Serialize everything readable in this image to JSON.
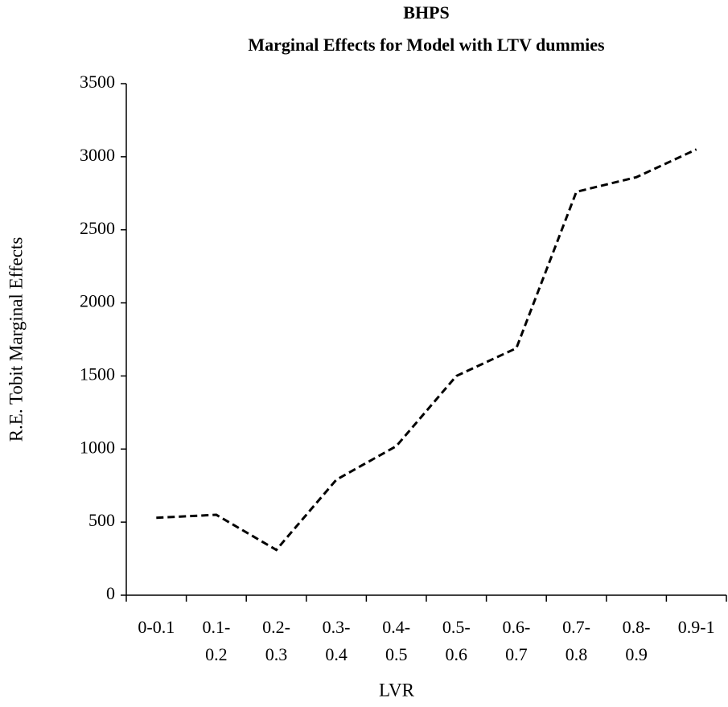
{
  "chart_data": {
    "type": "line",
    "title": "BHPS",
    "subtitle": "Marginal Effects for Model with LTV dummies",
    "x_label": "LVR",
    "y_label": "R.E. Tobit Marginal Effects",
    "categories": [
      "0-0.1",
      "0.1- 0.2",
      "0.2- 0.3",
      "0.3- 0.4",
      "0.4- 0.5",
      "0.5- 0.6",
      "0.6- 0.7",
      "0.7- 0.8",
      "0.8- 0.9",
      "0.9-1"
    ],
    "series": [
      {
        "name": "Marginal Effects",
        "color": "#000000",
        "dashed": true,
        "values": [
          530,
          550,
          310,
          790,
          1020,
          1500,
          1690,
          2760,
          2860,
          3050
        ]
      }
    ],
    "ylim": [
      0,
      3500
    ],
    "yticks": [
      0,
      500,
      1000,
      1500,
      2000,
      2500,
      3000,
      3500
    ],
    "grid": false,
    "legend": false
  }
}
